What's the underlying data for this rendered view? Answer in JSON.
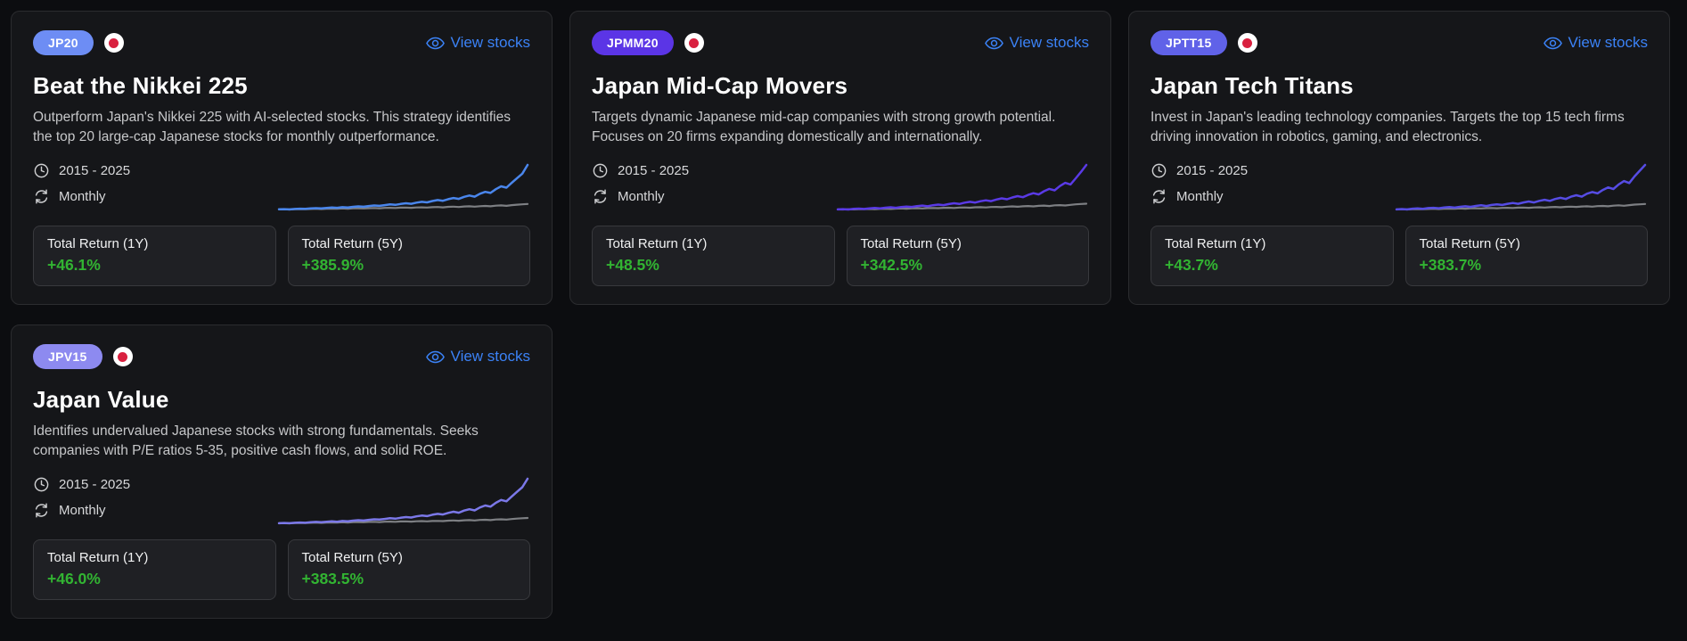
{
  "page": {
    "background": "#0c0d10"
  },
  "colors": {
    "link_blue": "#3b82f6",
    "positive_green": "#32b432",
    "benchmark_gray": "#7d7f83",
    "flag_red": "#d9203f"
  },
  "cards": [
    {
      "badge": "JP20",
      "badge_color": "#6d8df4",
      "flag": "japan",
      "view_stocks_label": "View stocks",
      "title": "Beat the Nikkei 225",
      "description": "Outperform Japan's Nikkei 225 with AI-selected stocks. This strategy identifies the top 20 large-cap Japanese stocks for monthly outperformance.",
      "period": "2015 - 2025",
      "frequency": "Monthly",
      "stats": [
        {
          "label": "Total Return (1Y)",
          "value": "+46.1%"
        },
        {
          "label": "Total Return (5Y)",
          "value": "+385.9%"
        }
      ],
      "chart": {
        "type": "line",
        "x_range": [
          "2015",
          "2025"
        ],
        "legend": false,
        "series": [
          {
            "name": "benchmark",
            "color": "#7d7f83",
            "values": [
              1.0,
              1.0,
              0.98,
              1.01,
              1.02,
              1.0,
              1.03,
              1.04,
              1.02,
              1.05,
              1.06,
              1.04,
              1.07,
              1.05,
              1.08,
              1.09,
              1.07,
              1.1,
              1.11,
              1.09,
              1.12,
              1.13,
              1.11,
              1.14,
              1.15,
              1.13,
              1.16,
              1.17,
              1.15,
              1.18,
              1.2,
              1.17,
              1.21,
              1.23,
              1.2,
              1.24,
              1.26,
              1.23,
              1.27,
              1.29,
              1.26,
              1.31,
              1.34,
              1.3,
              1.36,
              1.4,
              1.43,
              1.46
            ]
          },
          {
            "name": "strategy",
            "color": "#4a86ec",
            "values": [
              1.0,
              1.01,
              0.99,
              1.03,
              1.05,
              1.04,
              1.08,
              1.1,
              1.07,
              1.12,
              1.15,
              1.13,
              1.18,
              1.16,
              1.21,
              1.25,
              1.22,
              1.28,
              1.33,
              1.3,
              1.36,
              1.42,
              1.38,
              1.46,
              1.52,
              1.48,
              1.58,
              1.65,
              1.6,
              1.72,
              1.8,
              1.74,
              1.88,
              1.98,
              1.9,
              2.08,
              2.2,
              2.1,
              2.35,
              2.52,
              2.42,
              2.75,
              3.0,
              2.88,
              3.3,
              3.7,
              4.1,
              4.86
            ]
          }
        ]
      }
    },
    {
      "badge": "JPMM20",
      "badge_color": "#5b35e6",
      "flag": "japan",
      "view_stocks_label": "View stocks",
      "title": "Japan Mid-Cap Movers",
      "description": "Targets dynamic Japanese mid-cap companies with strong growth potential. Focuses on 20 firms expanding domestically and internationally.",
      "period": "2015 - 2025",
      "frequency": "Monthly",
      "stats": [
        {
          "label": "Total Return (1Y)",
          "value": "+48.5%"
        },
        {
          "label": "Total Return (5Y)",
          "value": "+342.5%"
        }
      ],
      "chart": {
        "type": "line",
        "x_range": [
          "2015",
          "2025"
        ],
        "legend": false,
        "series": [
          {
            "name": "benchmark",
            "color": "#7d7f83",
            "values": [
              1.0,
              0.99,
              1.01,
              1.0,
              1.02,
              1.01,
              1.03,
              1.02,
              1.04,
              1.05,
              1.03,
              1.06,
              1.07,
              1.05,
              1.08,
              1.09,
              1.07,
              1.1,
              1.11,
              1.09,
              1.12,
              1.13,
              1.11,
              1.14,
              1.15,
              1.13,
              1.16,
              1.17,
              1.15,
              1.18,
              1.19,
              1.17,
              1.21,
              1.23,
              1.2,
              1.24,
              1.26,
              1.23,
              1.27,
              1.29,
              1.26,
              1.31,
              1.33,
              1.3,
              1.35,
              1.39,
              1.42,
              1.44
            ]
          },
          {
            "name": "strategy",
            "color": "#5a3ae6",
            "values": [
              1.0,
              1.02,
              0.99,
              1.04,
              1.06,
              1.03,
              1.08,
              1.11,
              1.08,
              1.13,
              1.16,
              1.12,
              1.18,
              1.22,
              1.19,
              1.25,
              1.29,
              1.24,
              1.32,
              1.37,
              1.33,
              1.41,
              1.47,
              1.42,
              1.52,
              1.58,
              1.53,
              1.63,
              1.7,
              1.64,
              1.76,
              1.85,
              1.78,
              1.92,
              2.02,
              1.94,
              2.12,
              2.25,
              2.15,
              2.4,
              2.58,
              2.47,
              2.8,
              3.05,
              2.92,
              3.4,
              3.9,
              4.43
            ]
          }
        ]
      }
    },
    {
      "badge": "JPTT15",
      "badge_color": "#6062e8",
      "flag": "japan",
      "view_stocks_label": "View stocks",
      "title": "Japan Tech Titans",
      "description": "Invest in Japan's leading technology companies. Targets the top 15 tech firms driving innovation in robotics, gaming, and electronics.",
      "period": "2015 - 2025",
      "frequency": "Monthly",
      "stats": [
        {
          "label": "Total Return (1Y)",
          "value": "+43.7%"
        },
        {
          "label": "Total Return (5Y)",
          "value": "+383.7%"
        }
      ],
      "chart": {
        "type": "line",
        "x_range": [
          "2015",
          "2025"
        ],
        "legend": false,
        "series": [
          {
            "name": "benchmark",
            "color": "#7d7f83",
            "values": [
              1.0,
              1.01,
              0.99,
              1.02,
              1.03,
              1.01,
              1.04,
              1.05,
              1.03,
              1.06,
              1.07,
              1.05,
              1.08,
              1.06,
              1.09,
              1.1,
              1.08,
              1.11,
              1.12,
              1.1,
              1.13,
              1.14,
              1.12,
              1.15,
              1.16,
              1.14,
              1.17,
              1.18,
              1.16,
              1.19,
              1.21,
              1.18,
              1.22,
              1.24,
              1.21,
              1.25,
              1.27,
              1.24,
              1.28,
              1.3,
              1.27,
              1.32,
              1.35,
              1.31,
              1.37,
              1.41,
              1.44,
              1.47
            ]
          },
          {
            "name": "strategy",
            "color": "#564ce4",
            "values": [
              1.0,
              1.03,
              1.0,
              1.06,
              1.09,
              1.05,
              1.11,
              1.14,
              1.1,
              1.16,
              1.2,
              1.15,
              1.22,
              1.27,
              1.22,
              1.3,
              1.35,
              1.29,
              1.38,
              1.44,
              1.38,
              1.48,
              1.55,
              1.48,
              1.6,
              1.68,
              1.6,
              1.74,
              1.83,
              1.74,
              1.9,
              2.0,
              1.9,
              2.1,
              2.22,
              2.1,
              2.35,
              2.5,
              2.38,
              2.68,
              2.9,
              2.76,
              3.15,
              3.45,
              3.28,
              3.85,
              4.35,
              4.84
            ]
          }
        ]
      }
    },
    {
      "badge": "JPV15",
      "badge_color": "#8d8af0",
      "flag": "japan",
      "view_stocks_label": "View stocks",
      "title": "Japan Value",
      "description": "Identifies undervalued Japanese stocks with strong fundamentals. Seeks companies with P/E ratios 5-35, positive cash flows, and solid ROE.",
      "period": "2015 - 2025",
      "frequency": "Monthly",
      "stats": [
        {
          "label": "Total Return (1Y)",
          "value": "+46.0%"
        },
        {
          "label": "Total Return (5Y)",
          "value": "+383.5%"
        }
      ],
      "chart": {
        "type": "line",
        "x_range": [
          "2015",
          "2025"
        ],
        "legend": false,
        "series": [
          {
            "name": "benchmark",
            "color": "#7d7f83",
            "values": [
              1.0,
              1.0,
              0.99,
              1.02,
              1.03,
              1.01,
              1.04,
              1.05,
              1.03,
              1.06,
              1.07,
              1.05,
              1.08,
              1.06,
              1.09,
              1.1,
              1.08,
              1.11,
              1.12,
              1.1,
              1.13,
              1.14,
              1.12,
              1.15,
              1.16,
              1.14,
              1.17,
              1.18,
              1.16,
              1.19,
              1.2,
              1.18,
              1.22,
              1.24,
              1.21,
              1.25,
              1.27,
              1.24,
              1.28,
              1.3,
              1.27,
              1.32,
              1.34,
              1.31,
              1.36,
              1.4,
              1.43,
              1.45
            ]
          },
          {
            "name": "strategy",
            "color": "#7b78e8",
            "values": [
              1.0,
              1.02,
              1.0,
              1.04,
              1.06,
              1.04,
              1.09,
              1.11,
              1.08,
              1.13,
              1.16,
              1.13,
              1.19,
              1.17,
              1.22,
              1.26,
              1.23,
              1.29,
              1.34,
              1.31,
              1.37,
              1.43,
              1.39,
              1.47,
              1.53,
              1.49,
              1.59,
              1.66,
              1.61,
              1.73,
              1.81,
              1.75,
              1.89,
              1.99,
              1.91,
              2.09,
              2.21,
              2.11,
              2.36,
              2.53,
              2.43,
              2.76,
              3.01,
              2.89,
              3.31,
              3.71,
              4.11,
              4.84
            ]
          }
        ]
      }
    }
  ]
}
